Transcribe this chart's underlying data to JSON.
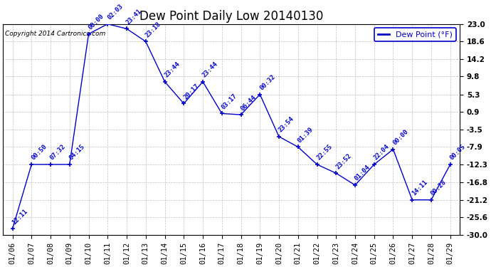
{
  "title": "Dew Point Daily Low 20140130",
  "copyright": "Copyright 2014 Cartronics.com",
  "legend_label": "Dew Point (°F)",
  "dates": [
    "01/06",
    "01/07",
    "01/08",
    "01/09",
    "01/10",
    "01/11",
    "01/12",
    "01/13",
    "01/14",
    "01/15",
    "01/16",
    "01/17",
    "01/18",
    "01/19",
    "01/20",
    "01/21",
    "01/22",
    "01/23",
    "01/24",
    "01/25",
    "01/26",
    "01/27",
    "01/28",
    "01/29"
  ],
  "values": [
    -28.5,
    -12.3,
    -12.3,
    -12.3,
    20.5,
    23.0,
    21.8,
    18.6,
    8.5,
    3.0,
    8.5,
    0.5,
    0.2,
    5.3,
    -5.3,
    -7.9,
    -12.3,
    -14.5,
    -17.5,
    -12.3,
    -8.5,
    -21.2,
    -21.2,
    -12.3
  ],
  "labels": [
    "12:11",
    "00:50",
    "07:32",
    "04:15",
    "00:00",
    "02:03",
    "23:41",
    "23:18",
    "23:44",
    "20:17",
    "23:44",
    "03:17",
    "06:44",
    "00:32",
    "23:54",
    "01:39",
    "22:55",
    "23:52",
    "01:04",
    "22:04",
    "00:00",
    "14:11",
    "00:28",
    "00:05"
  ],
  "line_color": "#0000cc",
  "marker_color": "#0000cc",
  "background_color": "#ffffff",
  "grid_color": "#b0b0b0",
  "ylim": [
    -30.0,
    23.0
  ],
  "yticks": [
    -30.0,
    -25.6,
    -21.2,
    -16.8,
    -12.3,
    -7.9,
    -3.5,
    0.9,
    5.3,
    9.8,
    14.2,
    18.6,
    23.0
  ],
  "title_fontsize": 12,
  "label_fontsize": 6.5,
  "tick_fontsize": 7.5,
  "legend_fontsize": 8,
  "copyright_fontsize": 6.5
}
